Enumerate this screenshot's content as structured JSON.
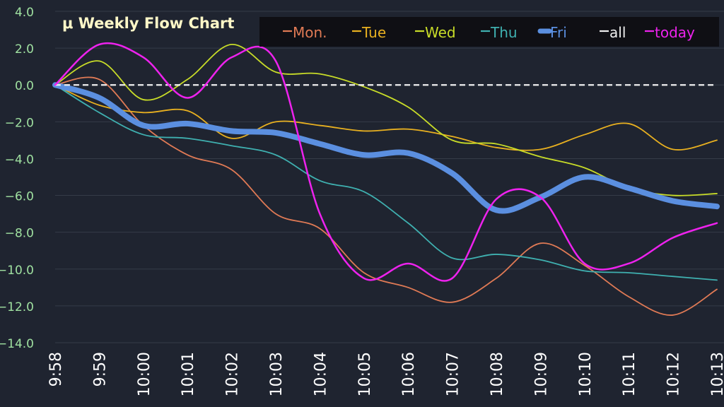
{
  "chart_data": {
    "type": "line",
    "title": "μ  Weekly Flow Chart",
    "x": [
      "9:58",
      "9:59",
      "10:00",
      "10:01",
      "10:02",
      "10:03",
      "10:04",
      "10:05",
      "10:06",
      "10:07",
      "10:08",
      "10:09",
      "10:10",
      "10:11",
      "10:12",
      "10:13"
    ],
    "ylim": [
      -14,
      4
    ],
    "yticks": [
      "4.0",
      "2.0",
      "0.0",
      "−2.0",
      "−4.0",
      "−6.0",
      "−8.0",
      "−10.0",
      "−12.0",
      "−14.0"
    ],
    "ytick_values": [
      4,
      2,
      0,
      -2,
      -4,
      -6,
      -8,
      -10,
      -12,
      -14
    ],
    "grid": true,
    "legend_position": "top-right",
    "series": [
      {
        "name": "Mon.",
        "color": "#e07a55",
        "width": 1.8,
        "values": [
          0,
          0.3,
          -2.2,
          -3.8,
          -4.6,
          -7.0,
          -7.8,
          -10.2,
          -11.0,
          -11.8,
          -10.5,
          -8.6,
          -9.8,
          -11.5,
          -12.5,
          -11.1
        ]
      },
      {
        "name": "Tue",
        "color": "#e8b020",
        "width": 1.8,
        "values": [
          0,
          -1.1,
          -1.5,
          -1.4,
          -2.9,
          -2.0,
          -2.2,
          -2.5,
          -2.4,
          -2.8,
          -3.4,
          -3.5,
          -2.7,
          -2.1,
          -3.5,
          -3.0
        ]
      },
      {
        "name": "Wed",
        "color": "#c8dc28",
        "width": 1.8,
        "values": [
          0,
          1.3,
          -0.8,
          0.3,
          2.2,
          0.7,
          0.6,
          -0.1,
          -1.2,
          -3.0,
          -3.2,
          -3.9,
          -4.5,
          -5.6,
          -6.0,
          -5.9
        ]
      },
      {
        "name": "Thu",
        "color": "#3fb0b0",
        "width": 1.8,
        "values": [
          0,
          -1.5,
          -2.7,
          -2.9,
          -3.3,
          -3.8,
          -5.2,
          -5.8,
          -7.5,
          -9.4,
          -9.2,
          -9.5,
          -10.1,
          -10.2,
          -10.4,
          -10.6
        ]
      },
      {
        "name": "Fri",
        "color": "#5b8fe0",
        "width": 8,
        "values": [
          0,
          -0.7,
          -2.2,
          -2.1,
          -2.5,
          -2.6,
          -3.2,
          -3.8,
          -3.7,
          -4.8,
          -6.8,
          -6.1,
          -5.0,
          -5.6,
          -6.3,
          -6.6
        ]
      },
      {
        "name": "all",
        "color": "#f0f0f0",
        "width": 2.2,
        "dashed": true,
        "values": [
          0,
          0,
          0,
          0,
          0,
          0,
          0,
          0,
          0,
          0,
          0,
          0,
          0,
          0,
          0,
          0
        ]
      },
      {
        "name": "today",
        "color": "#ee22ee",
        "width": 2.5,
        "values": [
          0,
          2.2,
          1.5,
          -0.7,
          1.5,
          1.3,
          -7.0,
          -10.5,
          -9.7,
          -10.5,
          -6.2,
          -6.1,
          -9.7,
          -9.7,
          -8.3,
          -7.5
        ]
      }
    ]
  }
}
